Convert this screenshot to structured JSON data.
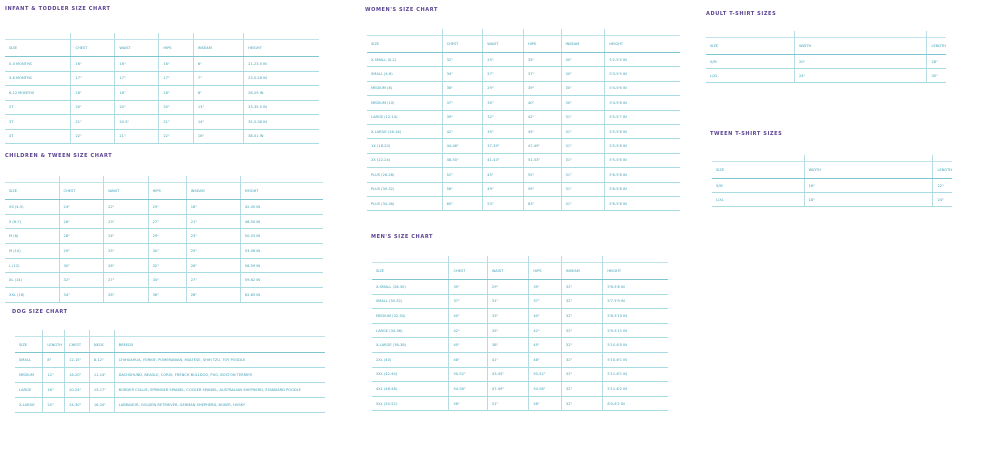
{
  "colors": {
    "title": "#5a4290",
    "text": "#3a9fb3",
    "rule": "#a9dbe3"
  },
  "charts": [
    {
      "id": "infant",
      "title": "INFANT & TODDLER SIZE CHART",
      "headers": [
        "SIZE",
        "CHEST",
        "WAIST",
        "HIPS",
        "INSEAM",
        "HEIGHT"
      ],
      "rows": [
        [
          "0-3 MONTHS",
          "16\"",
          "16\"",
          "16\"",
          "6\"",
          "21-23.5 IN"
        ],
        [
          "3-6 MONTHS",
          "17\"",
          "17\"",
          "17\"",
          "7\"",
          "23.5-26 IN"
        ],
        [
          "6-12 MONTHS",
          "18\"",
          "18\"",
          "18\"",
          "8\"",
          "26-29 IN"
        ],
        [
          "2T",
          "20\"",
          "20\"",
          "20\"",
          "13\"",
          "33-35.5 IN"
        ],
        [
          "3T",
          "21\"",
          "20.5\"",
          "21\"",
          "14\"",
          "35.5-38 IN"
        ],
        [
          "4T",
          "22\"",
          "21\"",
          "22\"",
          "16\"",
          "38-41 IN"
        ]
      ]
    },
    {
      "id": "children",
      "title": "CHILDREN & TWEEN SIZE CHART",
      "headers": [
        "SIZE",
        "CHEST",
        "WAIST",
        "HIPS",
        "INSEAM",
        "HEIGHT"
      ],
      "rows": [
        [
          "XS (4-5)",
          "24\"",
          "22\"",
          "25\"",
          "18\"",
          "42-45 IN"
        ],
        [
          "S (6-7)",
          "26\"",
          "23\"",
          "27\"",
          "21\"",
          "46-50 IN"
        ],
        [
          "M (8)",
          "28\"",
          "24\"",
          "29\"",
          "23\"",
          "50-53 IN"
        ],
        [
          "M (10)",
          "29\"",
          "25\"",
          "30\"",
          "25\"",
          "53-56 IN"
        ],
        [
          "L (12)",
          "30\"",
          "26\"",
          "32\"",
          "26\"",
          "56-59 IN"
        ],
        [
          "XL (14)",
          "32\"",
          "27\"",
          "34\"",
          "27\"",
          "59-62 IN"
        ],
        [
          "XXL (16)",
          "34\"",
          "28\"",
          "36\"",
          "28\"",
          "62-65 IN"
        ]
      ]
    },
    {
      "id": "dog",
      "title": "DOG SIZE CHART",
      "headers": [
        "SIZE",
        "LENGTH",
        "CHEST",
        "NECK",
        "BREEDS"
      ],
      "rows": [
        [
          "SMALL",
          "8\"",
          "12-15\"",
          "8-12\"",
          "CHIHUAHUA, YORKIE, POMERANIAN, MALTESE, SHIH TZU, TOY POODLE"
        ],
        [
          "MEDIUM",
          "12\"",
          "16-20\"",
          "11-14\"",
          "DACHSHUND, BEAGLE, CORGI, FRENCH BULLDOG, PUG, BOSTON TERRIER"
        ],
        [
          "LARGE",
          "16\"",
          "20-24\"",
          "13-17\"",
          "BORDER COLLIE, SPRINGER SPANIEL, COCKER SPANIEL, AUSTRALIAN SHEPHERD, STANDARD POODLE"
        ],
        [
          "X-LARGE",
          "20\"",
          "24-30\"",
          "16-20\"",
          "LABRADOR, GOLDEN RETRIEVER, GERMAN SHEPHERD, BOXER, HUSKY"
        ]
      ]
    },
    {
      "id": "women",
      "title": "WOMEN'S SIZE CHART",
      "headers": [
        "SIZE",
        "CHEST",
        "WAIST",
        "HIPS",
        "INSEAM",
        "HEIGHT"
      ],
      "rows": [
        [
          "X-SMALL (0-2)",
          "32\"",
          "25\"",
          "35\"",
          "30\"",
          "5'2-5'4 IN"
        ],
        [
          "SMALL (4-6)",
          "34\"",
          "27\"",
          "37\"",
          "30\"",
          "5'3-5'5 IN"
        ],
        [
          "MEDIUM (8)",
          "36\"",
          "29\"",
          "39\"",
          "30\"",
          "5'4-5'6 IN"
        ],
        [
          "MEDIUM (10)",
          "37\"",
          "30\"",
          "40\"",
          "30\"",
          "5'4-5'6 IN"
        ],
        [
          "LARGE (12-14)",
          "39\"",
          "32\"",
          "42\"",
          "31\"",
          "5'5-5'7 IN"
        ],
        [
          "X-LARGE (16-18)",
          "42\"",
          "35\"",
          "45\"",
          "31\"",
          "5'5-5'8 IN"
        ],
        [
          "1X (18-20)",
          "44-46\"",
          "37-39\"",
          "47-49\"",
          "31\"",
          "5'5-5'8 IN"
        ],
        [
          "2X (22-24)",
          "48-50\"",
          "41-43\"",
          "51-53\"",
          "31\"",
          "5'5-5'8 IN"
        ],
        [
          "PLUS (26-28)",
          "52\"",
          "45\"",
          "55\"",
          "31\"",
          "5'6-5'8 IN"
        ],
        [
          "PLUS (30-32)",
          "56\"",
          "49\"",
          "59\"",
          "31\"",
          "5'6-5'8 IN"
        ],
        [
          "PLUS (34-36)",
          "60\"",
          "53\"",
          "63\"",
          "31\"",
          "5'6-5'8 IN"
        ]
      ]
    },
    {
      "id": "men",
      "title": "MEN'S SIZE CHART",
      "headers": [
        "SIZE",
        "CHEST",
        "WAIST",
        "HIPS",
        "INSEAM",
        "HEIGHT"
      ],
      "rows": [
        [
          "X-SMALL (28-30)",
          "35\"",
          "29\"",
          "35\"",
          "32\"",
          "5'6-5'8 IN"
        ],
        [
          "SMALL (30-32)",
          "37\"",
          "31\"",
          "37\"",
          "32\"",
          "5'7-5'9 IN"
        ],
        [
          "MEDIUM (32-34)",
          "40\"",
          "33\"",
          "40\"",
          "32\"",
          "5'8-5'10 IN"
        ],
        [
          "LARGE (34-36)",
          "42\"",
          "35\"",
          "42\"",
          "32\"",
          "5'9-5'11 IN"
        ],
        [
          "X-LARGE (36-38)",
          "45\"",
          "38\"",
          "45\"",
          "32\"",
          "5'10-6'0 IN"
        ],
        [
          "2XL (40)",
          "48\"",
          "41\"",
          "48\"",
          "32\"",
          "5'10-6'1 IN"
        ],
        [
          "3XL (42-44)",
          "50-52\"",
          "43-45\"",
          "50-52\"",
          "32\"",
          "5'11-6'1 IN"
        ],
        [
          "4XL (46-48)",
          "54-56\"",
          "47-49\"",
          "54-56\"",
          "32\"",
          "5'11-6'2 IN"
        ],
        [
          "5XL (50-52)",
          "58\"",
          "51\"",
          "58\"",
          "32\"",
          "6'0-6'2 IN"
        ]
      ]
    },
    {
      "id": "adult-tee",
      "title": "ADULT T-SHIRT SIZES",
      "headers": [
        "SIZE",
        "WIDTH",
        "LENGTH"
      ],
      "rows": [
        [
          "S/M",
          "20\"",
          "28\""
        ],
        [
          "L/XL",
          "24\"",
          "30\""
        ]
      ]
    },
    {
      "id": "tween-tee",
      "title": "TWEEN T-SHIRT SIZES",
      "headers": [
        "SIZE",
        "WIDTH",
        "LENGTH"
      ],
      "rows": [
        [
          "S/M",
          "16\"",
          "22\""
        ],
        [
          "L/XL",
          "18\"",
          "24\""
        ]
      ]
    }
  ]
}
